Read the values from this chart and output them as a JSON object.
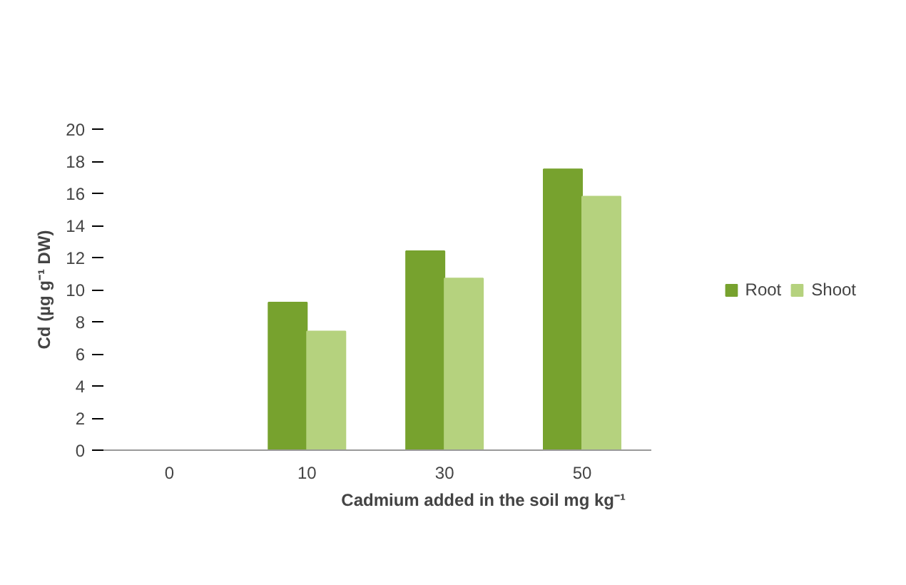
{
  "chart_data": {
    "type": "bar",
    "categories": [
      "0",
      "10",
      "30",
      "50"
    ],
    "series": [
      {
        "name": "Root",
        "color": "#77a22e",
        "values": [
          0,
          9.2,
          12.4,
          17.5
        ]
      },
      {
        "name": "Shoot",
        "color": "#b5d27e",
        "values": [
          0,
          7.4,
          10.7,
          15.8
        ]
      }
    ],
    "xlabel": "Cadmium  added in the soil mg kg⁻¹",
    "ylabel": "Cd (µg g⁻¹ DW)",
    "ylim": [
      0,
      20
    ],
    "yticks": [
      0,
      2,
      4,
      6,
      8,
      10,
      12,
      14,
      16,
      18,
      20
    ],
    "grid": false,
    "legend": "right"
  }
}
